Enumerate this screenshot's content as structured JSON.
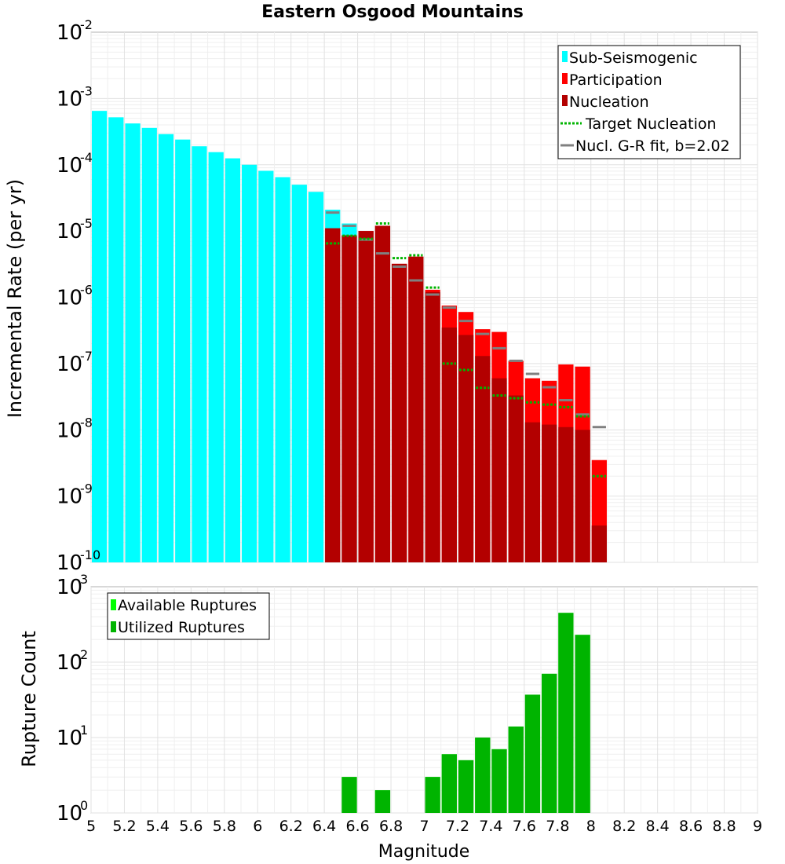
{
  "chart_data": [
    {
      "type": "bar",
      "title": "Eastern Osgood Mountains",
      "xlabel": "",
      "ylabel": "Incremental Rate (per yr)",
      "yscale": "log",
      "ylim_exp": [
        -10,
        -2
      ],
      "xlim": [
        5,
        9
      ],
      "grid": true,
      "legend_position": "top-right",
      "legend": [
        {
          "label": "Sub-Seismogenic",
          "color": "#00ffff",
          "style": "bar"
        },
        {
          "label": "Participation",
          "color": "#ff0000",
          "style": "bar"
        },
        {
          "label": "Nucleation",
          "color": "#b30000",
          "style": "bar"
        },
        {
          "label": "Target Nucleation",
          "color": "#00b400",
          "style": "dotted"
        },
        {
          "label": "Nucl. G-R fit, b=2.02",
          "color": "#808080",
          "style": "line"
        }
      ],
      "subseismogenic": {
        "x": [
          5.05,
          5.15,
          5.25,
          5.35,
          5.45,
          5.55,
          5.65,
          5.75,
          5.85,
          5.95,
          6.05,
          6.15,
          6.25,
          6.35,
          6.45,
          6.55
        ],
        "values": [
          0.00065,
          0.00052,
          0.00042,
          0.00036,
          0.00029,
          0.00024,
          0.00019,
          0.000155,
          0.000125,
          0.0001,
          8.1e-05,
          6.5e-05,
          5e-05,
          3.9e-05,
          2.1e-05,
          1.3e-05
        ]
      },
      "participation": {
        "x": [
          6.45,
          6.55,
          6.65,
          6.75,
          6.85,
          6.95,
          7.05,
          7.15,
          7.25,
          7.35,
          7.45,
          7.55,
          7.65,
          7.75,
          7.85,
          7.95,
          8.05
        ],
        "values": [
          1.1e-05,
          8.6e-06,
          1e-05,
          1.2e-05,
          3.2e-06,
          4.1e-06,
          1.3e-06,
          7.5e-07,
          6e-07,
          3.3e-07,
          3e-07,
          1.1e-07,
          6e-08,
          5.5e-08,
          9.7e-08,
          9e-08,
          3.5e-09
        ]
      },
      "nucleation": {
        "x": [
          6.45,
          6.55,
          6.65,
          6.75,
          6.85,
          6.95,
          7.05,
          7.15,
          7.25,
          7.35,
          7.45,
          7.55,
          7.65,
          7.75,
          7.85,
          7.95,
          8.05
        ],
        "values": [
          1.1e-05,
          8.6e-06,
          1e-05,
          1.2e-05,
          3.2e-06,
          4.1e-06,
          1.2e-06,
          3.5e-07,
          2.7e-07,
          1.3e-07,
          6e-08,
          3.3e-08,
          1.3e-08,
          1.2e-08,
          1.1e-08,
          1e-08,
          3.6e-10
        ]
      },
      "target_nucleation": {
        "x": [
          6.45,
          6.55,
          6.65,
          6.75,
          6.85,
          6.95,
          7.05,
          7.15,
          7.25,
          7.35,
          7.45,
          7.55,
          7.65,
          7.75,
          7.85,
          7.95,
          8.05
        ],
        "values": [
          6.5e-06,
          8.5e-06,
          7.6e-06,
          1.3e-05,
          3.9e-06,
          4.3e-06,
          1.4e-06,
          1e-07,
          8e-08,
          4.3e-08,
          3.3e-08,
          3e-08,
          2.6e-08,
          2.4e-08,
          2.2e-08,
          1.6e-08,
          2e-09
        ]
      },
      "gr_fit": {
        "x": [
          6.45,
          6.55,
          6.65,
          6.75,
          6.85,
          6.95,
          7.05,
          7.15,
          7.25,
          7.35,
          7.45,
          7.55,
          7.65,
          7.75,
          7.85,
          7.95,
          8.05
        ],
        "values": [
          1.9e-05,
          1.2e-05,
          7.4e-06,
          4.6e-06,
          2.9e-06,
          1.8e-06,
          1.1e-06,
          7e-07,
          4.4e-07,
          2.8e-07,
          1.7e-07,
          1.1e-07,
          7e-08,
          4.4e-08,
          2.8e-08,
          1.7e-08,
          1.1e-08
        ]
      }
    },
    {
      "type": "bar",
      "title": "",
      "xlabel": "Magnitude",
      "ylabel": "Rupture Count",
      "yscale": "log",
      "ylim_exp": [
        0,
        3
      ],
      "xlim": [
        5,
        9
      ],
      "grid": true,
      "legend_position": "top-left",
      "legend": [
        {
          "label": "Available Ruptures",
          "color": "#00ff00",
          "style": "bar"
        },
        {
          "label": "Utilized Ruptures",
          "color": "#00b400",
          "style": "bar"
        }
      ],
      "available": {
        "x": [
          6.55,
          6.75,
          6.85,
          6.95,
          7.05,
          7.15,
          7.25,
          7.35,
          7.45,
          7.55,
          7.65,
          7.75,
          7.85,
          7.95
        ],
        "values": [
          3,
          2,
          1,
          1,
          3,
          6,
          5,
          10,
          7,
          14,
          37,
          70,
          450,
          230
        ]
      },
      "utilized": {
        "x": [
          6.55,
          6.75,
          6.85,
          6.95,
          7.05,
          7.15,
          7.25,
          7.35,
          7.45,
          7.55,
          7.65,
          7.75,
          7.85,
          7.95
        ],
        "values": [
          3,
          2,
          1,
          1,
          3,
          6,
          5,
          10,
          7,
          14,
          37,
          70,
          450,
          230
        ]
      }
    }
  ],
  "x_ticks": [
    "5",
    "5.2",
    "5.4",
    "5.6",
    "5.8",
    "6",
    "6.2",
    "6.4",
    "6.6",
    "6.8",
    "7",
    "7.2",
    "7.4",
    "7.6",
    "7.8",
    "8",
    "8.2",
    "8.4",
    "8.6",
    "8.8",
    "9"
  ],
  "colors": {
    "subseismogenic": "#00ffff",
    "participation": "#ff0000",
    "nucleation": "#b30000",
    "target": "#00b400",
    "grfit": "#808080",
    "nucl_fit_inner": "#2a2a2a",
    "available": "#00ff00",
    "utilized": "#00b400"
  }
}
